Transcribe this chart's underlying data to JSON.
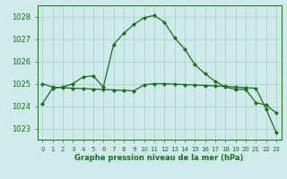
{
  "title": "Graphe pression niveau de la mer (hPa)",
  "bg_color": "#ceeaea",
  "grid_color": "#a8d5c8",
  "line_color": "#1a6e1a",
  "ylim": [
    1022.5,
    1028.5
  ],
  "yticks": [
    1023,
    1024,
    1025,
    1026,
    1027,
    1028
  ],
  "x_labels": [
    "0",
    "1",
    "2",
    "3",
    "4",
    "5",
    "6",
    "7",
    "8",
    "9",
    "10",
    "11",
    "12",
    "13",
    "14",
    "15",
    "16",
    "17",
    "18",
    "19",
    "20",
    "21",
    "22",
    "23"
  ],
  "curve1_x": [
    0,
    1,
    2,
    3,
    4,
    5,
    6,
    7,
    8,
    9,
    10,
    11,
    12,
    13,
    14,
    15,
    16,
    17,
    18,
    19,
    20,
    21,
    22,
    23
  ],
  "curve1_y": [
    1024.1,
    1024.8,
    1024.85,
    1025.0,
    1025.3,
    1025.35,
    1024.85,
    1026.75,
    1027.25,
    1027.65,
    1027.95,
    1028.05,
    1027.75,
    1027.05,
    1026.55,
    1025.85,
    1025.45,
    1025.1,
    1024.85,
    1024.75,
    1024.75,
    1024.15,
    1024.05,
    1023.7
  ],
  "curve2_x": [
    0,
    1,
    2,
    3,
    4,
    5,
    6,
    7,
    8,
    9,
    10,
    11,
    12,
    13,
    14,
    15,
    16,
    17,
    18,
    19,
    20,
    21,
    22,
    23
  ],
  "curve2_y": [
    1025.0,
    1024.85,
    1024.82,
    1024.8,
    1024.78,
    1024.76,
    1024.74,
    1024.72,
    1024.7,
    1024.68,
    1024.95,
    1025.0,
    1025.0,
    1024.98,
    1024.96,
    1024.94,
    1024.92,
    1024.9,
    1024.88,
    1024.85,
    1024.82,
    1024.8,
    1023.88,
    1022.82
  ]
}
